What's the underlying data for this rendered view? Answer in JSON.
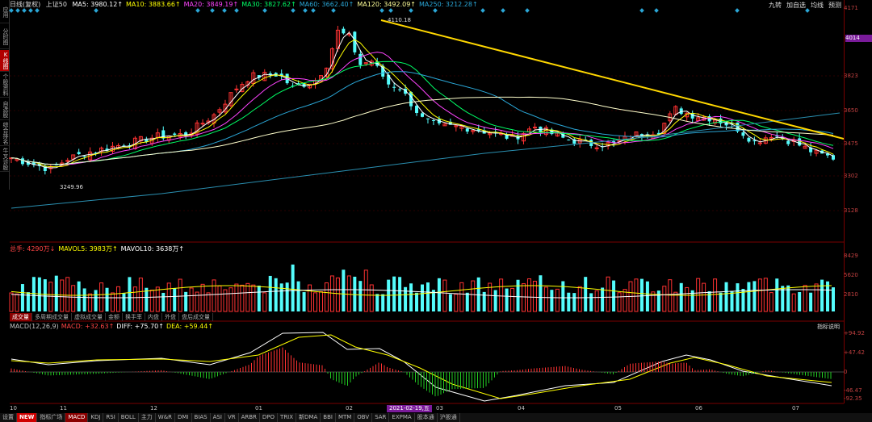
{
  "sidebar": {
    "tabs": [
      {
        "label": "应用",
        "active": false
      },
      {
        "label": "分时图",
        "active": false
      },
      {
        "label": "K线图",
        "active": true
      },
      {
        "label": "个股资料",
        "active": false
      },
      {
        "label": "自选股",
        "active": false
      },
      {
        "label": "综合排名",
        "active": false
      },
      {
        "label": "牛叉诊股",
        "active": false
      }
    ]
  },
  "main_legend": {
    "name": "日线(复权)",
    "index": "上证50",
    "ma": [
      {
        "label": "MA5: 3980.12↑",
        "color": "#ffffff"
      },
      {
        "label": "MA10: 3883.66↑",
        "color": "#ffff00"
      },
      {
        "label": "MA20: 3849.19↑",
        "color": "#ff44ff"
      },
      {
        "label": "MA30: 3827.62↑",
        "color": "#00ff66"
      },
      {
        "label": "MA60: 3662.40↑",
        "color": "#2aa6d6"
      },
      {
        "label": "MA120: 3492.09↑",
        "color": "#ffff99"
      },
      {
        "label": "MA250: 3212.28↑",
        "color": "#2aa6d6"
      }
    ]
  },
  "top_right": [
    "九转",
    "加自选",
    "均线",
    "预测"
  ],
  "price_axis": {
    "labels": [
      {
        "v": 4171,
        "y": 10
      },
      {
        "v": 4014,
        "y": 48,
        "badge": true
      },
      {
        "v": 3823,
        "y": 94
      },
      {
        "v": 3650,
        "y": 137
      },
      {
        "v": 3475,
        "y": 178
      },
      {
        "v": 3302,
        "y": 218
      },
      {
        "v": 3128,
        "y": 261
      }
    ],
    "ann_high": "4110.18",
    "ann_low": "3249.96"
  },
  "volume": {
    "legend": [
      {
        "label": "总手: 4290万↓",
        "color": "#ff4444"
      },
      {
        "label": "MAVOL5: 3983万↑",
        "color": "#ffff00"
      },
      {
        "label": "MAVOL10: 3638万↑",
        "color": "#ffffff"
      }
    ],
    "axis": [
      "8429",
      "5620",
      "2810"
    ],
    "tabs": [
      "成交量",
      "多周期成交量",
      "虚拟成交量",
      "金额",
      "换手率",
      "内盘",
      "外盘",
      "盘后成交量"
    ]
  },
  "macd": {
    "legend": [
      {
        "label": "MACD(12,26,9)",
        "color": "#c0c0c0"
      },
      {
        "label": "MACD: +32.63↑",
        "color": "#ff4444"
      },
      {
        "label": "DIFF: +75.70↑",
        "color": "#ffffff"
      },
      {
        "label": "DEA: +59.44↑",
        "color": "#ffff00"
      }
    ],
    "axis": [
      "+94.92",
      "+47.42",
      "0",
      "-46.47",
      "-92.35"
    ],
    "button": "指标说明"
  },
  "time_axis": {
    "labels": [
      "10",
      "11",
      "12",
      "01",
      "02",
      "03",
      "04",
      "05",
      "06",
      "07"
    ],
    "cursor_date": "2021-02-19,五"
  },
  "bottom_tabs": [
    {
      "label": "设置",
      "type": ""
    },
    {
      "label": "NEW",
      "type": "new"
    },
    {
      "label": "指标广场",
      "type": ""
    },
    {
      "label": "MACD",
      "type": "active"
    },
    {
      "label": "KDJ",
      "type": ""
    },
    {
      "label": "RSI",
      "type": ""
    },
    {
      "label": "BOLL",
      "type": ""
    },
    {
      "label": "主力",
      "type": ""
    },
    {
      "label": "W&R",
      "type": ""
    },
    {
      "label": "DMI",
      "type": ""
    },
    {
      "label": "BIAS",
      "type": ""
    },
    {
      "label": "ASI",
      "type": ""
    },
    {
      "label": "VR",
      "type": ""
    },
    {
      "label": "ARBR",
      "type": ""
    },
    {
      "label": "DPO",
      "type": ""
    },
    {
      "label": "TRIX",
      "type": ""
    },
    {
      "label": "新DMA",
      "type": ""
    },
    {
      "label": "BBI",
      "type": ""
    },
    {
      "label": "MTM",
      "type": ""
    },
    {
      "label": "OBV",
      "type": ""
    },
    {
      "label": "SAR",
      "type": ""
    },
    {
      "label": "EXPMA",
      "type": ""
    },
    {
      "label": "股本通",
      "type": ""
    },
    {
      "label": "沪股通",
      "type": ""
    }
  ],
  "colors": {
    "up": "#ff3232",
    "down": "#54fcfc",
    "trendline": "#ffd700",
    "grid": "#5a0000"
  }
}
